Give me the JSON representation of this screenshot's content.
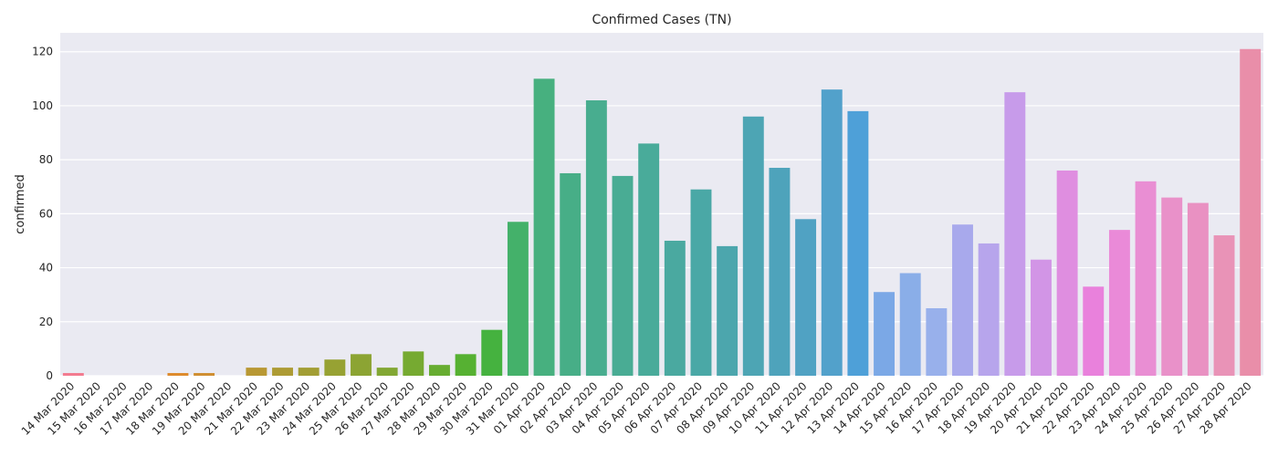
{
  "chart_data": {
    "type": "bar",
    "title": "Confirmed Cases (TN)",
    "xlabel": "",
    "ylabel": "confirmed",
    "ylim": [
      0,
      127
    ],
    "yticks": [
      0,
      20,
      40,
      60,
      80,
      100,
      120
    ],
    "grid": true,
    "categories": [
      "14 Mar 2020",
      "15 Mar 2020",
      "16 Mar 2020",
      "17 Mar 2020",
      "18 Mar 2020",
      "19 Mar 2020",
      "20 Mar 2020",
      "21 Mar 2020",
      "22 Mar 2020",
      "23 Mar 2020",
      "24 Mar 2020",
      "25 Mar 2020",
      "26 Mar 2020",
      "27 Mar 2020",
      "28 Mar 2020",
      "29 Mar 2020",
      "30 Mar 2020",
      "31 Mar 2020",
      "01 Apr 2020",
      "02 Apr 2020",
      "03 Apr 2020",
      "04 Apr 2020",
      "05 Apr 2020",
      "06 Apr 2020",
      "07 Apr 2020",
      "08 Apr 2020",
      "09 Apr 2020",
      "10 Apr 2020",
      "11 Apr 2020",
      "12 Apr 2020",
      "13 Apr 2020",
      "14 Apr 2020",
      "15 Apr 2020",
      "16 Apr 2020",
      "17 Apr 2020",
      "18 Apr 2020",
      "19 Apr 2020",
      "20 Apr 2020",
      "21 Apr 2020",
      "22 Apr 2020",
      "23 Apr 2020",
      "24 Apr 2020",
      "25 Apr 2020",
      "26 Apr 2020",
      "27 Apr 2020",
      "28 Apr 2020"
    ],
    "values": [
      1,
      0,
      0,
      0,
      1,
      1,
      0,
      3,
      3,
      3,
      6,
      8,
      3,
      9,
      4,
      8,
      17,
      57,
      110,
      75,
      102,
      74,
      86,
      50,
      69,
      48,
      96,
      77,
      58,
      106,
      98,
      31,
      38,
      25,
      56,
      49,
      105,
      43,
      76,
      33,
      54,
      72,
      66,
      64,
      52,
      121
    ],
    "colors": [
      "#f37a8f",
      "#f27c74",
      "#ee8147",
      "#e88427",
      "#dd8a2c",
      "#cf8e31",
      "#c39433",
      "#b89833",
      "#ad9b34",
      "#a29e34",
      "#97a233",
      "#8ca433",
      "#82a733",
      "#76aa31",
      "#67ad31",
      "#56b132",
      "#45b23f",
      "#44b16a",
      "#47b07f",
      "#47ae87",
      "#48ad8f",
      "#49ac94",
      "#49ab9a",
      "#4aa9a0",
      "#4aa8a6",
      "#4ca6ad",
      "#4da5b4",
      "#4ea3bb",
      "#50a2c3",
      "#52a1cb",
      "#4ea0d8",
      "#7ba8e6",
      "#8aaee8",
      "#98b0eb",
      "#a8a9ec",
      "#b7a5ec",
      "#c79bea",
      "#d295e6",
      "#df8ee0",
      "#e981dc",
      "#ea8ad8",
      "#e98ed3",
      "#e991c9",
      "#e991c2",
      "#e993b7",
      "#e98ea9"
    ]
  }
}
